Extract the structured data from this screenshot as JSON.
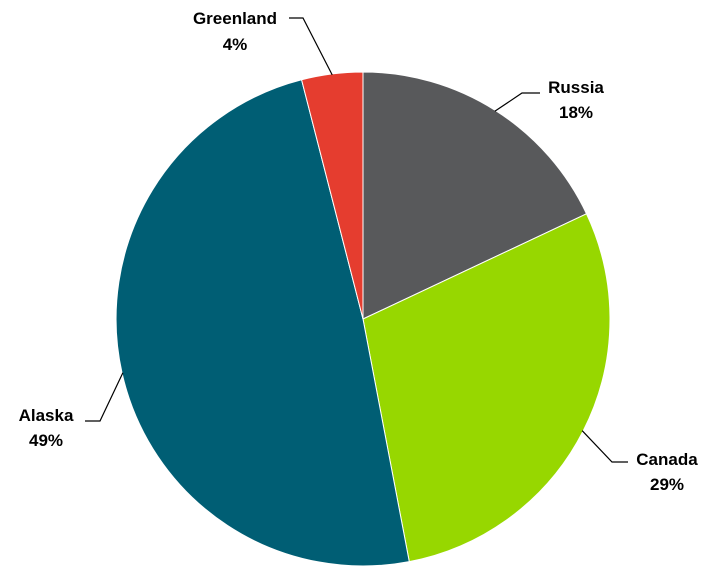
{
  "chart_data": {
    "type": "pie",
    "categories": [
      "Russia",
      "Canada",
      "Alaska",
      "Greenland"
    ],
    "values": [
      18,
      29,
      49,
      4
    ],
    "value_labels": [
      "18%",
      "29%",
      "49%",
      "4%"
    ],
    "colors": [
      "#58595B",
      "#97D700",
      "#005E74",
      "#E53D2F"
    ],
    "start_angle_deg": 0,
    "direction": "clockwise",
    "legend": "none"
  }
}
